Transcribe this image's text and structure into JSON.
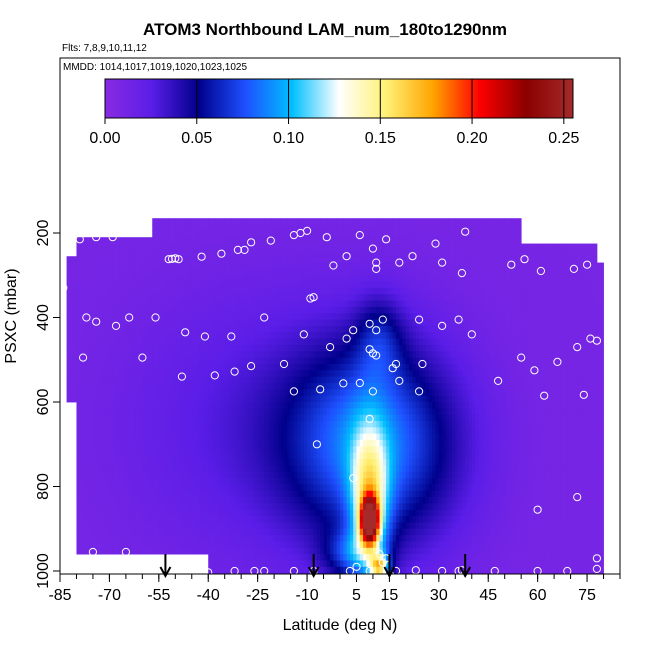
{
  "chart_data": {
    "type": "heatmap",
    "title": "ATOM3 Northbound LAM_num_180to1290nm",
    "notes": [
      "Flts: 7,8,9,10,11,12",
      "MMDD: 1014,1017,1019,1020,1023,1025"
    ],
    "xlabel": "Latitude (deg N)",
    "ylabel": "PSXC (mbar)",
    "xlim": [
      -85,
      85
    ],
    "ylim": [
      1000,
      0
    ],
    "x_ticks": [
      "-85",
      "-70",
      "-55",
      "-40",
      "-25",
      "-10",
      "5",
      "15",
      "30",
      "45",
      "60",
      "75"
    ],
    "x_tick_values": [
      -85,
      -70,
      -55,
      -40,
      -25,
      -10,
      5,
      15,
      30,
      45,
      60,
      75
    ],
    "x_minor_step": 5,
    "y_ticks": [
      "200",
      "400",
      "600",
      "800",
      "1000"
    ],
    "y_tick_values": [
      200,
      400,
      600,
      800,
      1000
    ],
    "colorbar": {
      "range": [
        0,
        0.255
      ],
      "ticks": [
        "0.00",
        "0.05",
        "0.10",
        "0.15",
        "0.20",
        "0.25"
      ],
      "tick_values": [
        0,
        0.05,
        0.1,
        0.15,
        0.2,
        0.25
      ],
      "colors": [
        "#8a2be2",
        "#5a1de8",
        "#00008b",
        "#1e50ff",
        "#00bfff",
        "#ffffff",
        "#fff176",
        "#ffa500",
        "#ff0000",
        "#8b0000",
        "#a52a2a"
      ]
    },
    "background_value": 0.01,
    "coverage": [
      {
        "lat": [
          -57,
          78
        ],
        "p": [
          165,
          1000
        ]
      },
      {
        "lat": [
          -80,
          -57
        ],
        "p": [
          212,
          955
        ]
      },
      {
        "lat": [
          -83,
          -80
        ],
        "p": [
          260,
          600
        ]
      },
      {
        "lat": [
          78,
          80
        ],
        "p": [
          275,
          1000
        ]
      }
    ],
    "empty_regions": [
      {
        "lat": [
          -83,
          -40
        ],
        "p": [
          955,
          1000
        ]
      },
      {
        "lat": [
          55,
          78
        ],
        "p": [
          165,
          228
        ]
      }
    ],
    "plumes": [
      {
        "lat": 9,
        "p": 880,
        "sx": 1.8,
        "sy": 35,
        "v": 0.21
      },
      {
        "lat": 9,
        "p": 840,
        "sx": 4,
        "sy": 120,
        "v": 0.09
      },
      {
        "lat": 10,
        "p": 700,
        "sx": 18,
        "sy": 170,
        "v": 0.075
      },
      {
        "lat": 12,
        "p": 450,
        "sx": 5,
        "sy": 70,
        "v": 0.03
      },
      {
        "lat": -25,
        "p": 650,
        "sx": 28,
        "sy": 220,
        "v": 0.018
      },
      {
        "lat": 12,
        "p": 990,
        "sx": 2,
        "sy": 20,
        "v": 0.1
      },
      {
        "lat": 4,
        "p": 960,
        "sx": 6,
        "sy": 40,
        "v": 0.045
      }
    ],
    "samples": [
      [
        -79,
        215
      ],
      [
        -74,
        210
      ],
      [
        -69,
        210
      ],
      [
        -52,
        262
      ],
      [
        -51,
        261
      ],
      [
        -50,
        260
      ],
      [
        -49,
        262
      ],
      [
        -42,
        256
      ],
      [
        -36,
        249
      ],
      [
        -31,
        240
      ],
      [
        -29,
        240
      ],
      [
        -27,
        222
      ],
      [
        -21,
        218
      ],
      [
        -14,
        205
      ],
      [
        -12,
        200
      ],
      [
        -10,
        195
      ],
      [
        -4,
        210
      ],
      [
        -2,
        277
      ],
      [
        2,
        255
      ],
      [
        6,
        205
      ],
      [
        10,
        237
      ],
      [
        11,
        270
      ],
      [
        11,
        285
      ],
      [
        14,
        215
      ],
      [
        18,
        270
      ],
      [
        22,
        255
      ],
      [
        29,
        225
      ],
      [
        31,
        270
      ],
      [
        37,
        295
      ],
      [
        38,
        197
      ],
      [
        52,
        275
      ],
      [
        56,
        262
      ],
      [
        61,
        290
      ],
      [
        71,
        285
      ],
      [
        75,
        275
      ],
      [
        -84,
        330
      ],
      [
        -77,
        400
      ],
      [
        -74,
        410
      ],
      [
        -68,
        420
      ],
      [
        -64,
        400
      ],
      [
        -56,
        400
      ],
      [
        -47,
        435
      ],
      [
        -41,
        445
      ],
      [
        -33,
        445
      ],
      [
        -23,
        400
      ],
      [
        -9,
        355
      ],
      [
        -8,
        352
      ],
      [
        4,
        430
      ],
      [
        9,
        415
      ],
      [
        11,
        430
      ],
      [
        13,
        405
      ],
      [
        24,
        405
      ],
      [
        31,
        420
      ],
      [
        36,
        405
      ],
      [
        40,
        440
      ],
      [
        -3,
        470
      ],
      [
        2,
        450
      ],
      [
        9,
        475
      ],
      [
        10,
        485
      ],
      [
        11,
        490
      ],
      [
        17,
        510
      ],
      [
        25,
        510
      ],
      [
        55,
        495
      ],
      [
        66,
        505
      ],
      [
        72,
        470
      ],
      [
        76,
        450
      ],
      [
        78,
        455
      ],
      [
        -78,
        495
      ],
      [
        -60,
        495
      ],
      [
        -48,
        540
      ],
      [
        -38,
        537
      ],
      [
        -32,
        528
      ],
      [
        -27,
        515
      ],
      [
        -11,
        440
      ],
      [
        -17,
        510
      ],
      [
        -6,
        570
      ],
      [
        -14,
        575
      ],
      [
        1,
        556
      ],
      [
        6,
        555
      ],
      [
        10,
        575
      ],
      [
        16,
        520
      ],
      [
        18,
        550
      ],
      [
        24,
        575
      ],
      [
        48,
        550
      ],
      [
        59,
        525
      ],
      [
        74,
        583
      ],
      [
        62,
        585
      ],
      [
        9,
        640
      ],
      [
        -7,
        700
      ],
      [
        4,
        780
      ],
      [
        72,
        825
      ],
      [
        60,
        855
      ],
      [
        -75,
        955
      ],
      [
        -65,
        955
      ],
      [
        -44,
        1000
      ],
      [
        -40,
        1003
      ],
      [
        -32,
        1000
      ],
      [
        -26,
        1000
      ],
      [
        -23,
        1000
      ],
      [
        -14,
        1000
      ],
      [
        -8,
        1000
      ],
      [
        3,
        1000
      ],
      [
        5,
        990
      ],
      [
        9,
        1000
      ],
      [
        12,
        960
      ],
      [
        13,
        980
      ],
      [
        14,
        970
      ],
      [
        17,
        1000
      ],
      [
        23,
        998
      ],
      [
        31,
        1000
      ],
      [
        36,
        1000
      ],
      [
        37,
        998
      ],
      [
        47,
        1000
      ],
      [
        60,
        1000
      ],
      [
        69,
        1000
      ],
      [
        78,
        970
      ],
      [
        78,
        995
      ]
    ],
    "arrows_lat": [
      -53,
      -8,
      15,
      38
    ]
  }
}
